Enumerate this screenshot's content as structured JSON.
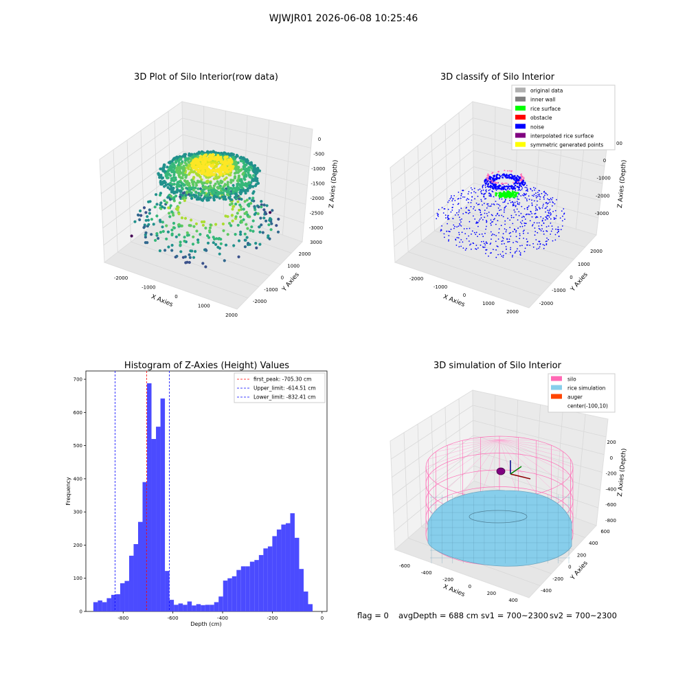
{
  "suptitle": "WJWJR01 2026-06-08 10:25:46",
  "footer": {
    "flag": "flag = 0",
    "avg": "avgDepth = 688 cm",
    "sv1": "sv1 = 700~2300",
    "sv2": "sv2 = 700~2300"
  },
  "chart_data": [
    {
      "type": "scatter",
      "panel": "3d-raw",
      "title": "3D Plot of Silo Interior(row data)",
      "xlabel": "X Axies",
      "ylabel": "Y Axies",
      "zlabel": "Z Axies (Depth)",
      "x_ticks": [
        "-2000",
        "-1000",
        "0",
        "1000",
        "2000"
      ],
      "y_ticks": [
        "-2000",
        "-1000",
        "0",
        "1000",
        "2000",
        "3000"
      ],
      "z_ticks": [
        "0",
        "-500",
        "-1000",
        "-1500",
        "-2000",
        "-2500",
        "-3000"
      ],
      "colormap": "viridis",
      "zlim": [
        -3200,
        0
      ]
    },
    {
      "type": "scatter",
      "panel": "3d-classify",
      "title": "3D classify of Silo Interior",
      "xlabel": "X Axies",
      "ylabel": "Y Axies",
      "zlabel": "Z Axies (Depth)",
      "x_ticks": [
        "-2000",
        "-1000",
        "0",
        "1000",
        "2000"
      ],
      "y_ticks": [
        "-2000",
        "-1000",
        "0",
        "1000",
        "2000"
      ],
      "z_ticks": [
        "0",
        "-1000",
        "-2000",
        "-3000"
      ],
      "z_ticks_partial": [
        "00"
      ],
      "legend_position": "upper right",
      "legend": [
        {
          "label": "original data",
          "color": "#b0b0b0"
        },
        {
          "label": "inner wall",
          "color": "#808080"
        },
        {
          "label": "rice surface",
          "color": "#00ff00"
        },
        {
          "label": "obstacle",
          "color": "#ff0000"
        },
        {
          "label": "noise",
          "color": "#0000ff"
        },
        {
          "label": "interpolated rice surface",
          "color": "#800080"
        },
        {
          "label": "symmetric generated points",
          "color": "#ffff00"
        }
      ]
    },
    {
      "type": "bar",
      "panel": "histogram",
      "title": "Histogram of Z-Axies (Height) Values",
      "xlabel": "Depth (cm)",
      "ylabel": "Frequency",
      "xlim": [
        -950,
        20
      ],
      "ylim": [
        0,
        725
      ],
      "x_ticks": [
        -800,
        -600,
        -400,
        -200,
        0
      ],
      "y_ticks": [
        0,
        100,
        200,
        300,
        400,
        500,
        600,
        700
      ],
      "bar_color": "#4b4bff",
      "bin_width": 18,
      "bin_start": -920,
      "values": [
        28,
        33,
        28,
        40,
        50,
        52,
        85,
        92,
        168,
        203,
        270,
        390,
        688,
        520,
        557,
        642,
        122,
        35,
        20,
        24,
        20,
        30,
        18,
        22,
        19,
        20,
        20,
        28,
        45,
        93,
        100,
        106,
        125,
        136,
        136,
        150,
        155,
        170,
        190,
        196,
        227,
        247,
        262,
        266,
        296,
        222,
        128,
        60,
        22
      ],
      "lines": [
        {
          "label": "first_peak: -705.30 cm",
          "value": -705.3,
          "color": "#ff0000"
        },
        {
          "label": "Upper_limit: -614.51 cm",
          "value": -614.51,
          "color": "#0000ff"
        },
        {
          "label": "Lower_limit: -832.41 cm",
          "value": -832.41,
          "color": "#0000ff"
        }
      ],
      "legend_position": "upper right"
    },
    {
      "type": "scatter",
      "panel": "3d-simulation",
      "title": "3D simulation of Silo Interior",
      "xlabel": "X Axies",
      "ylabel": "Y Axies",
      "zlabel": "Z Axies (Depth)",
      "x_ticks": [
        "-600",
        "-400",
        "-200",
        "0",
        "200",
        "400"
      ],
      "y_ticks": [
        "-400",
        "-200",
        "0",
        "200",
        "400",
        "600"
      ],
      "z_ticks": [
        "200",
        "0",
        "-200",
        "-400",
        "-600",
        "-800"
      ],
      "legend_position": "upper right",
      "legend": [
        {
          "label": "silo",
          "color": "#ff69b4"
        },
        {
          "label": "rice simulation",
          "color": "#87ceeb"
        },
        {
          "label": "auger",
          "color": "#ff4500"
        },
        {
          "label": "center(-100,10)",
          "color": ""
        }
      ]
    }
  ]
}
